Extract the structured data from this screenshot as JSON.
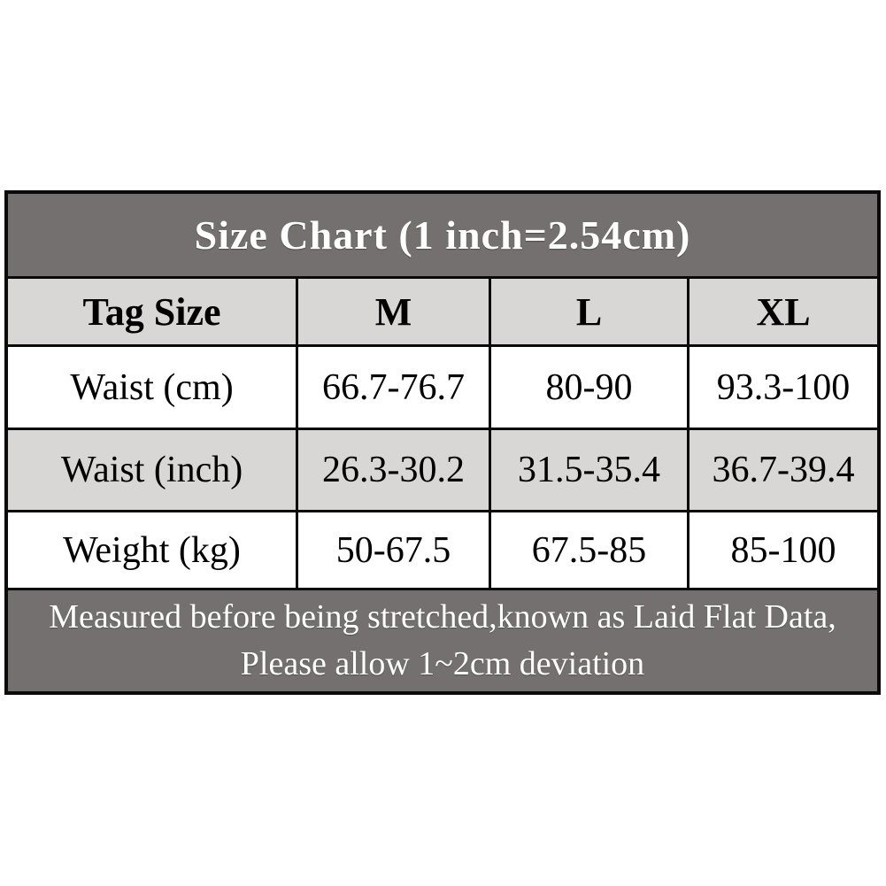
{
  "colors": {
    "page_bg": "#ffffff",
    "title_bar_bg": "#747070",
    "header_row_bg": "#d9d6d6",
    "row_bg": "#ffffff",
    "row_alt_bg": "#d9d6d6",
    "footer_bar_bg": "#747070",
    "grid_border": "#0a0a0a",
    "title_text": "#ffffff",
    "cell_text": "#000000"
  },
  "chart_data": {
    "type": "table",
    "title": "Size Chart (1 inch=2.54cm)",
    "columns": [
      "Tag Size",
      "M",
      "L",
      "XL"
    ],
    "rows": [
      [
        "Waist (cm)",
        "66.7-76.7",
        "80-90",
        "93.3-100"
      ],
      [
        "Waist (inch)",
        "26.3-30.2",
        "31.5-35.4",
        "36.7-39.4"
      ],
      [
        "Weight (kg)",
        "50-67.5",
        "67.5-85",
        "85-100"
      ]
    ],
    "footnote_lines": [
      "Measured before being stretched,known as Laid Flat Data,",
      "Please allow 1~2cm deviation"
    ],
    "layout_hints": {
      "header_style": "bold",
      "row_background_alternates": true,
      "grid": true
    }
  }
}
